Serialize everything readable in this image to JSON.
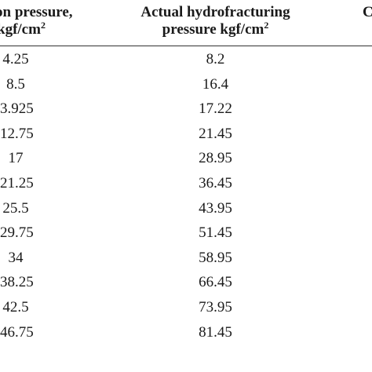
{
  "headers": {
    "col1_line1": "on pressure,",
    "col1_line2_base": "kgf/cm",
    "col1_line2_sup": "2",
    "col2_line1": "Actual hydrofracturing",
    "col2_line2_base": "pressure kgf/cm",
    "col2_line2_sup": "2",
    "col3_partial": "C"
  },
  "rows": [
    {
      "col1": "4.25",
      "col2": "8.2"
    },
    {
      "col1": "8.5",
      "col2": "16.4"
    },
    {
      "col1": "3.925",
      "col2": "17.22"
    },
    {
      "col1": "12.75",
      "col2": "21.45"
    },
    {
      "col1": "17",
      "col2": "28.95"
    },
    {
      "col1": "21.25",
      "col2": "36.45"
    },
    {
      "col1": "25.5",
      "col2": "43.95"
    },
    {
      "col1": "29.75",
      "col2": "51.45"
    },
    {
      "col1": "34",
      "col2": "58.95"
    },
    {
      "col1": "38.25",
      "col2": "66.45"
    },
    {
      "col1": "42.5",
      "col2": "73.95"
    },
    {
      "col1": "46.75",
      "col2": "81.45"
    }
  ]
}
